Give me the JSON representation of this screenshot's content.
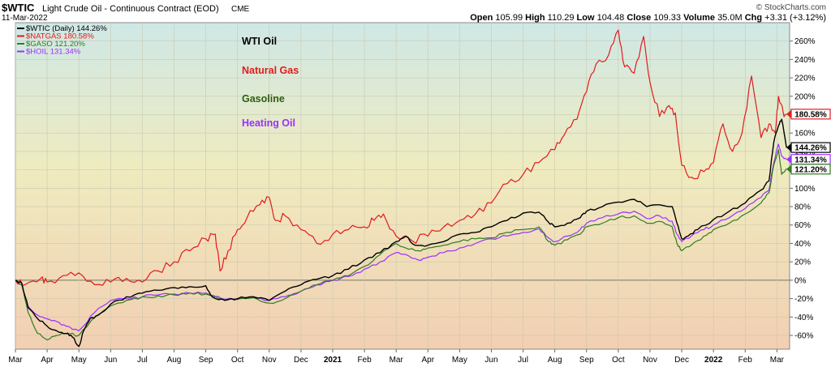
{
  "header": {
    "symbol": "$WTIC",
    "description": "Light Crude Oil - Continuous Contract (EOD)",
    "exchange": "CME",
    "date": "11-Mar-2022",
    "watermark": "© StockCharts.com",
    "quote": {
      "open_label": "Open",
      "open": "105.99",
      "high_label": "High",
      "high": "110.29",
      "low_label": "Low",
      "low": "104.48",
      "close_label": "Close",
      "close": "109.33",
      "volume_label": "Volume",
      "volume": "35.0M",
      "chg_label": "Chg",
      "chg": "+3.31 (+3.12%)"
    }
  },
  "legend": [
    {
      "text": "$WTIC (Daily) 144.26%",
      "color": "#000000"
    },
    {
      "text": "$NATGAS 180.58%",
      "color": "#e31a1c"
    },
    {
      "text": "$GASO 121.20%",
      "color": "#2e7d1e"
    },
    {
      "text": "$HOIL 131.34%",
      "color": "#9b30ff"
    }
  ],
  "annotations": [
    {
      "text": "WTI Oil",
      "color": "#000000"
    },
    {
      "text": "Natural Gas",
      "color": "#e31a1c"
    },
    {
      "text": "Gasoline",
      "color": "#2e5e10"
    },
    {
      "text": "Heating Oil",
      "color": "#9b30ff"
    }
  ],
  "chart_data": {
    "type": "line",
    "title": "$WTIC Light Crude Oil - Continuous Contract (EOD)",
    "xlabel": "",
    "ylabel": "",
    "x_unit": "months since Mar 2021",
    "xlim": [
      0,
      24.4
    ],
    "ylim": [
      -75,
      280
    ],
    "y_ticks": [
      -60,
      -40,
      -20,
      0,
      20,
      40,
      60,
      80,
      100,
      120,
      140,
      160,
      180,
      200,
      220,
      240,
      260
    ],
    "y_tick_labels": [
      "-60%",
      "-40%",
      "-20%",
      "0%",
      "20%",
      "40%",
      "60%",
      "80%",
      "100%",
      "120%",
      "140%",
      "160%",
      "180%",
      "200%",
      "220%",
      "240%",
      "260%"
    ],
    "x_ticks": [
      {
        "x": 0,
        "label": "Mar",
        "bold": false
      },
      {
        "x": 1,
        "label": "Apr",
        "bold": false
      },
      {
        "x": 2,
        "label": "May",
        "bold": false
      },
      {
        "x": 3,
        "label": "Jun",
        "bold": false
      },
      {
        "x": 4,
        "label": "Jul",
        "bold": false
      },
      {
        "x": 5,
        "label": "Aug",
        "bold": false
      },
      {
        "x": 6,
        "label": "Sep",
        "bold": false
      },
      {
        "x": 7,
        "label": "Oct",
        "bold": false
      },
      {
        "x": 8,
        "label": "Nov",
        "bold": false
      },
      {
        "x": 9,
        "label": "Dec",
        "bold": false
      },
      {
        "x": 10,
        "label": "2021",
        "bold": true
      },
      {
        "x": 11,
        "label": "Feb",
        "bold": false
      },
      {
        "x": 12,
        "label": "Mar",
        "bold": false
      },
      {
        "x": 13,
        "label": "Apr",
        "bold": false
      },
      {
        "x": 14,
        "label": "May",
        "bold": false
      },
      {
        "x": 15,
        "label": "Jun",
        "bold": false
      },
      {
        "x": 16,
        "label": "Jul",
        "bold": false
      },
      {
        "x": 17,
        "label": "Aug",
        "bold": false
      },
      {
        "x": 18,
        "label": "Sep",
        "bold": false
      },
      {
        "x": 19,
        "label": "Oct",
        "bold": false
      },
      {
        "x": 20,
        "label": "Nov",
        "bold": false
      },
      {
        "x": 21,
        "label": "Dec",
        "bold": false
      },
      {
        "x": 22,
        "label": "2022",
        "bold": true
      },
      {
        "x": 23,
        "label": "Feb",
        "bold": false
      },
      {
        "x": 24,
        "label": "Mar",
        "bold": false
      }
    ],
    "grid": true,
    "zero_line": true,
    "legend_position": "top-left",
    "series": [
      {
        "name": "$WTIC (Daily)",
        "last_label": "144.26%",
        "color": "#000000",
        "last": 144.26,
        "points": [
          [
            0,
            0
          ],
          [
            0.2,
            -3
          ],
          [
            0.4,
            -30
          ],
          [
            0.7,
            -42
          ],
          [
            1,
            -50
          ],
          [
            1.3,
            -55
          ],
          [
            1.6,
            -58
          ],
          [
            1.8,
            -62
          ],
          [
            2.0,
            -72
          ],
          [
            2.15,
            -55
          ],
          [
            2.35,
            -42
          ],
          [
            2.6,
            -38
          ],
          [
            3.0,
            -26
          ],
          [
            3.5,
            -18
          ],
          [
            4.0,
            -14
          ],
          [
            4.5,
            -11
          ],
          [
            5.0,
            -8
          ],
          [
            5.5,
            -7
          ],
          [
            6.0,
            -6
          ],
          [
            6.2,
            -18
          ],
          [
            6.6,
            -22
          ],
          [
            7.0,
            -20
          ],
          [
            7.5,
            -18
          ],
          [
            8.0,
            -22
          ],
          [
            8.5,
            -12
          ],
          [
            9.0,
            -5
          ],
          [
            9.5,
            1
          ],
          [
            10.0,
            5
          ],
          [
            10.5,
            12
          ],
          [
            11.0,
            22
          ],
          [
            11.5,
            30
          ],
          [
            12.0,
            42
          ],
          [
            12.3,
            48
          ],
          [
            12.6,
            38
          ],
          [
            13.0,
            38
          ],
          [
            13.5,
            42
          ],
          [
            14.0,
            50
          ],
          [
            14.5,
            52
          ],
          [
            15.0,
            58
          ],
          [
            15.5,
            65
          ],
          [
            16.0,
            73
          ],
          [
            16.5,
            74
          ],
          [
            16.8,
            63
          ],
          [
            17.0,
            58
          ],
          [
            17.4,
            62
          ],
          [
            17.8,
            68
          ],
          [
            18.0,
            75
          ],
          [
            18.5,
            80
          ],
          [
            19.0,
            85
          ],
          [
            19.5,
            88
          ],
          [
            19.9,
            80
          ],
          [
            20.3,
            82
          ],
          [
            20.7,
            80
          ],
          [
            20.85,
            62
          ],
          [
            21.0,
            45
          ],
          [
            21.2,
            48
          ],
          [
            21.5,
            55
          ],
          [
            22.0,
            66
          ],
          [
            22.5,
            75
          ],
          [
            23.0,
            84
          ],
          [
            23.5,
            98
          ],
          [
            23.75,
            108
          ],
          [
            23.9,
            150
          ],
          [
            24.05,
            168
          ],
          [
            24.15,
            175
          ],
          [
            24.3,
            144.26
          ]
        ]
      },
      {
        "name": "$NATGAS",
        "last_label": "180.58%",
        "color": "#e31a1c",
        "last": 180.58,
        "points": [
          [
            0,
            0
          ],
          [
            0.3,
            -5
          ],
          [
            0.8,
            2
          ],
          [
            1.0,
            -2
          ],
          [
            1.5,
            5
          ],
          [
            2.0,
            8
          ],
          [
            2.5,
            -5
          ],
          [
            3.0,
            -2
          ],
          [
            3.5,
            2
          ],
          [
            4.0,
            -2
          ],
          [
            4.5,
            10
          ],
          [
            5.0,
            20
          ],
          [
            5.5,
            32
          ],
          [
            6.0,
            45
          ],
          [
            6.3,
            50
          ],
          [
            6.45,
            10
          ],
          [
            6.7,
            32
          ],
          [
            7.0,
            55
          ],
          [
            7.3,
            68
          ],
          [
            7.7,
            82
          ],
          [
            8.0,
            90
          ],
          [
            8.2,
            65
          ],
          [
            8.5,
            70
          ],
          [
            9.0,
            55
          ],
          [
            9.5,
            40
          ],
          [
            10.0,
            50
          ],
          [
            10.5,
            55
          ],
          [
            11.0,
            58
          ],
          [
            11.3,
            65
          ],
          [
            11.6,
            72
          ],
          [
            12.0,
            48
          ],
          [
            12.5,
            43
          ],
          [
            13.0,
            48
          ],
          [
            13.5,
            58
          ],
          [
            14.0,
            65
          ],
          [
            14.5,
            72
          ],
          [
            15.0,
            84
          ],
          [
            15.5,
            105
          ],
          [
            16.0,
            115
          ],
          [
            16.5,
            128
          ],
          [
            17.0,
            142
          ],
          [
            17.3,
            158
          ],
          [
            17.7,
            175
          ],
          [
            18.0,
            205
          ],
          [
            18.3,
            235
          ],
          [
            18.7,
            245
          ],
          [
            19.0,
            272
          ],
          [
            19.2,
            232
          ],
          [
            19.5,
            225
          ],
          [
            19.8,
            265
          ],
          [
            20.0,
            215
          ],
          [
            20.3,
            178
          ],
          [
            20.6,
            190
          ],
          [
            20.8,
            182
          ],
          [
            21.0,
            125
          ],
          [
            21.3,
            112
          ],
          [
            21.7,
            118
          ],
          [
            22.0,
            128
          ],
          [
            22.3,
            170
          ],
          [
            22.6,
            140
          ],
          [
            22.9,
            160
          ],
          [
            23.2,
            222
          ],
          [
            23.5,
            155
          ],
          [
            23.75,
            170
          ],
          [
            23.95,
            160
          ],
          [
            24.05,
            200
          ],
          [
            24.2,
            182
          ],
          [
            24.3,
            180.58
          ]
        ]
      },
      {
        "name": "$GASO",
        "last_label": "121.20%",
        "color": "#2e7d1e",
        "last": 121.2,
        "points": [
          [
            0,
            0
          ],
          [
            0.2,
            -5
          ],
          [
            0.4,
            -35
          ],
          [
            0.7,
            -58
          ],
          [
            1.0,
            -65
          ],
          [
            1.3,
            -60
          ],
          [
            1.6,
            -58
          ],
          [
            2.0,
            -60
          ],
          [
            2.5,
            -40
          ],
          [
            3.0,
            -28
          ],
          [
            3.5,
            -22
          ],
          [
            4.0,
            -18
          ],
          [
            4.5,
            -17
          ],
          [
            5.0,
            -16
          ],
          [
            5.5,
            -14
          ],
          [
            6.0,
            -15
          ],
          [
            6.5,
            -21
          ],
          [
            7.0,
            -21
          ],
          [
            7.5,
            -19
          ],
          [
            8.0,
            -25
          ],
          [
            8.5,
            -20
          ],
          [
            9.0,
            -12
          ],
          [
            9.5,
            -5
          ],
          [
            10.0,
            0
          ],
          [
            10.5,
            5
          ],
          [
            11.0,
            15
          ],
          [
            11.5,
            28
          ],
          [
            12.0,
            40
          ],
          [
            12.3,
            35
          ],
          [
            12.7,
            32
          ],
          [
            13.0,
            35
          ],
          [
            13.5,
            38
          ],
          [
            14.0,
            42
          ],
          [
            14.5,
            45
          ],
          [
            15.0,
            46
          ],
          [
            15.5,
            52
          ],
          [
            16.0,
            55
          ],
          [
            16.5,
            58
          ],
          [
            16.8,
            42
          ],
          [
            17.0,
            38
          ],
          [
            17.4,
            44
          ],
          [
            17.8,
            50
          ],
          [
            18.0,
            58
          ],
          [
            18.5,
            62
          ],
          [
            19.0,
            68
          ],
          [
            19.5,
            70
          ],
          [
            19.9,
            62
          ],
          [
            20.3,
            64
          ],
          [
            20.7,
            58
          ],
          [
            20.85,
            40
          ],
          [
            21.0,
            32
          ],
          [
            21.3,
            38
          ],
          [
            21.7,
            48
          ],
          [
            22.0,
            55
          ],
          [
            22.5,
            62
          ],
          [
            23.0,
            72
          ],
          [
            23.5,
            84
          ],
          [
            23.75,
            95
          ],
          [
            23.9,
            125
          ],
          [
            24.05,
            142
          ],
          [
            24.15,
            115
          ],
          [
            24.3,
            121.2
          ]
        ]
      },
      {
        "name": "$HOIL",
        "last_label": "131.34%",
        "color": "#9b30ff",
        "last": 131.34,
        "points": [
          [
            0,
            0
          ],
          [
            0.2,
            -5
          ],
          [
            0.4,
            -28
          ],
          [
            0.7,
            -38
          ],
          [
            1.0,
            -42
          ],
          [
            1.3,
            -45
          ],
          [
            1.6,
            -50
          ],
          [
            2.0,
            -55
          ],
          [
            2.5,
            -35
          ],
          [
            3.0,
            -22
          ],
          [
            3.5,
            -20
          ],
          [
            4.0,
            -18
          ],
          [
            4.5,
            -16
          ],
          [
            5.0,
            -15
          ],
          [
            5.5,
            -14
          ],
          [
            6.0,
            -14
          ],
          [
            6.5,
            -20
          ],
          [
            7.0,
            -20
          ],
          [
            7.5,
            -18
          ],
          [
            8.0,
            -22
          ],
          [
            8.5,
            -18
          ],
          [
            9.0,
            -12
          ],
          [
            9.5,
            -5
          ],
          [
            10.0,
            0
          ],
          [
            10.5,
            4
          ],
          [
            11.0,
            12
          ],
          [
            11.5,
            20
          ],
          [
            12.0,
            30
          ],
          [
            12.3,
            28
          ],
          [
            12.7,
            22
          ],
          [
            13.0,
            25
          ],
          [
            13.5,
            30
          ],
          [
            14.0,
            35
          ],
          [
            14.5,
            40
          ],
          [
            15.0,
            45
          ],
          [
            15.5,
            48
          ],
          [
            16.0,
            52
          ],
          [
            16.5,
            56
          ],
          [
            16.8,
            46
          ],
          [
            17.0,
            42
          ],
          [
            17.4,
            48
          ],
          [
            17.8,
            55
          ],
          [
            18.0,
            62
          ],
          [
            18.5,
            68
          ],
          [
            19.0,
            72
          ],
          [
            19.5,
            75
          ],
          [
            19.9,
            67
          ],
          [
            20.3,
            70
          ],
          [
            20.7,
            64
          ],
          [
            20.85,
            50
          ],
          [
            21.0,
            42
          ],
          [
            21.3,
            48
          ],
          [
            21.7,
            55
          ],
          [
            22.0,
            60
          ],
          [
            22.5,
            68
          ],
          [
            23.0,
            78
          ],
          [
            23.5,
            90
          ],
          [
            23.75,
            98
          ],
          [
            23.9,
            128
          ],
          [
            24.05,
            148
          ],
          [
            24.15,
            135
          ],
          [
            24.3,
            131.34
          ]
        ]
      }
    ]
  }
}
